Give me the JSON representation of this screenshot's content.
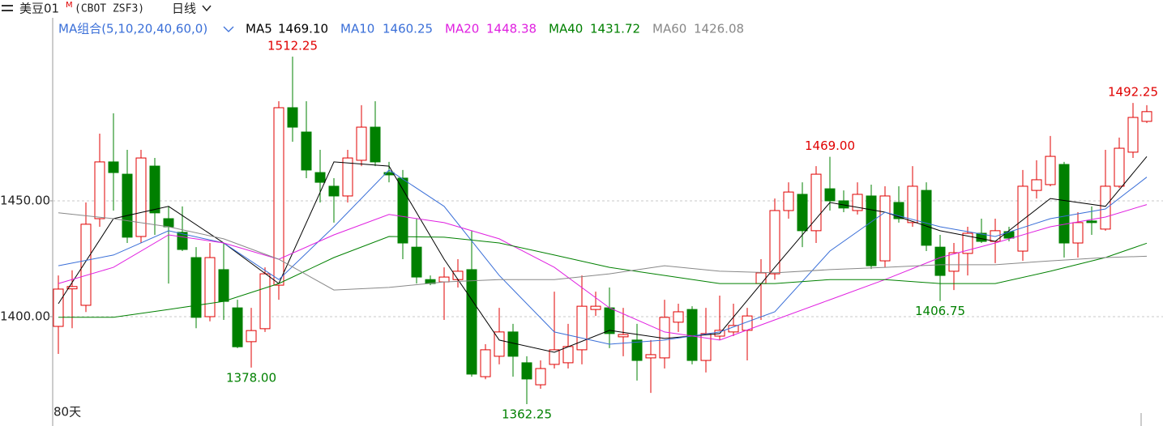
{
  "chart_data": {
    "type": "candlestick",
    "title": "美豆01",
    "title_mark": "M",
    "symbol": "(CBOT ZSF3)",
    "period": "日线",
    "ma_group_label": "MA组合(5,10,20,40,60,0)",
    "period_count": "80天",
    "up_color": "#e00000",
    "down_color": "#008000",
    "ylim": [
      1352.8,
      1529.0
    ],
    "yticks": [
      {
        "value": 1400,
        "label": "1400.00"
      },
      {
        "value": 1450,
        "label": "1450.00"
      }
    ],
    "grid": true,
    "open": [
      1395.8,
      1412,
      1404.9,
      1442.3,
      1466.8,
      1461.5,
      1434.6,
      1465,
      1442.3,
      1436.4,
      1425.5,
      1400,
      1420.3,
      1403.8,
      1389.2,
      1394.8,
      1413.6,
      1490.2,
      1479.7,
      1462.2,
      1456.3,
      1452.1,
      1467.5,
      1481.8,
      1462.2,
      1459.8,
      1430,
      1416,
      1415,
      1416,
      1420.3,
      1374.1,
      1382.9,
      1393.4,
      1380.1,
      1370.6,
      1379.4,
      1380.1,
      1385.7,
      1403.1,
      1403.8,
      1391.3,
      1389.9,
      1382.2,
      1382.2,
      1397.6,
      1403.1,
      1381.1,
      1391.6,
      1393.4,
      1394.1,
      1414.3,
      1418.5,
      1445.8,
      1452.8,
      1437.1,
      1455.2,
      1450,
      1445.8,
      1452.1,
      1424.1,
      1449.3,
      1440.6,
      1454.5,
      1430,
      1419.6,
      1427.3,
      1436,
      1432.5,
      1436.7,
      1428.3,
      1454.5,
      1457,
      1465.7,
      1431.8,
      1441.3,
      1437.8,
      1456.3,
      1471,
      1484.3
    ],
    "high": [
      1417.8,
      1420,
      1449.3,
      1479,
      1487.8,
      1472,
      1472,
      1468.5,
      1447.6,
      1447.6,
      1430,
      1431.8,
      1431.8,
      1407.3,
      1403.8,
      1421.3,
      1493,
      1512.25,
      1493,
      1472,
      1459.8,
      1472,
      1491.3,
      1493,
      1466.8,
      1463.3,
      1442.3,
      1417.8,
      1421.3,
      1424.8,
      1437,
      1388.1,
      1403.8,
      1396.9,
      1382.9,
      1381.1,
      1410.8,
      1396.9,
      1417.8,
      1410.8,
      1412.6,
      1403.8,
      1396.9,
      1389.9,
      1407.3,
      1405.6,
      1404.5,
      1403.8,
      1409.1,
      1405.6,
      1403.8,
      1424.8,
      1451,
      1458,
      1458,
      1465,
      1469,
      1454.5,
      1458,
      1457,
      1456.3,
      1456.3,
      1465,
      1458,
      1435.3,
      1431.8,
      1438.8,
      1442.3,
      1442.3,
      1438.8,
      1463.3,
      1467.5,
      1478,
      1466.8,
      1445.1,
      1447.6,
      1472,
      1477.3,
      1492.25,
      1491.3
    ],
    "low": [
      1383.9,
      1395,
      1402,
      1438.8,
      1445.8,
      1431.8,
      1431.8,
      1435.3,
      1414.3,
      1428.3,
      1395,
      1398,
      1398.6,
      1386.4,
      1378,
      1393.4,
      1407.3,
      1475.5,
      1459.8,
      1449.3,
      1440.6,
      1449.3,
      1465,
      1465,
      1458,
      1424.8,
      1414.3,
      1413.6,
      1398.6,
      1412.6,
      1374.1,
      1373,
      1379.4,
      1374.1,
      1362.25,
      1368.9,
      1377.6,
      1377.6,
      1379.4,
      1400.3,
      1386.4,
      1382.9,
      1372.4,
      1367.1,
      1377.6,
      1393.4,
      1379.4,
      1375.9,
      1389.9,
      1391.6,
      1381.1,
      1398.6,
      1416,
      1442.3,
      1430,
      1431.8,
      1445.8,
      1445.1,
      1444.1,
      1420.6,
      1421.3,
      1440.6,
      1438.8,
      1428.3,
      1406.75,
      1411.5,
      1417.8,
      1431.8,
      1423.1,
      1432.5,
      1424.1,
      1451,
      1456.3,
      1425.5,
      1425.5,
      1435.3,
      1437.1,
      1455.6,
      1468.5,
      1483.6
    ],
    "close": [
      1411.9,
      1413,
      1439.9,
      1466.8,
      1462.2,
      1434.3,
      1468.5,
      1444.8,
      1438.8,
      1429,
      1399.7,
      1425.5,
      1406.6,
      1387,
      1394,
      1418.5,
      1490.2,
      1481.8,
      1463.3,
      1458,
      1452.1,
      1468.5,
      1481.8,
      1466.8,
      1461.2,
      1431.8,
      1417.1,
      1414.3,
      1417.1,
      1419.6,
      1375.2,
      1385.7,
      1393.4,
      1382.9,
      1373.1,
      1377.6,
      1385.7,
      1387.1,
      1404.5,
      1404.5,
      1392.7,
      1392.3,
      1381.1,
      1383.6,
      1399.7,
      1402.1,
      1381.1,
      1392.7,
      1394.1,
      1396.2,
      1400.3,
      1418.9,
      1445.8,
      1453.8,
      1437.1,
      1461.5,
      1450,
      1446.9,
      1452.8,
      1422,
      1452.1,
      1442.3,
      1456.3,
      1430.8,
      1417.8,
      1427.6,
      1436,
      1432.5,
      1437.1,
      1433.9,
      1456.3,
      1459.1,
      1469.2,
      1431.8,
      1440.6,
      1440.6,
      1456.3,
      1472.7,
      1486,
      1488.5
    ],
    "series": [
      {
        "name": "MA5",
        "latest_label": "1469.10",
        "color": "#000000",
        "x": [
          0,
          4,
          8,
          12,
          16,
          20,
          24,
          28,
          32,
          36,
          40,
          44,
          48,
          52,
          56,
          60,
          64,
          68,
          72,
          76,
          79
        ],
        "values": [
          1405.6,
          1442.3,
          1447.6,
          1431.8,
          1414.3,
          1466.8,
          1465,
          1424.8,
          1389.9,
          1384.6,
          1394.1,
          1390.6,
          1392.7,
          1421.3,
          1449.3,
          1445.1,
          1437.1,
          1432.5,
          1451,
          1447.6,
          1469.1
        ]
      },
      {
        "name": "MA10",
        "latest_label": "1460.25",
        "color": "#3a6fd8",
        "x": [
          0,
          4,
          8,
          12,
          16,
          20,
          24,
          28,
          32,
          36,
          40,
          44,
          48,
          52,
          56,
          60,
          64,
          68,
          72,
          76,
          79
        ],
        "values": [
          1422,
          1426.6,
          1437.1,
          1431.8,
          1416,
          1438.8,
          1463.3,
          1447.6,
          1417.8,
          1393.4,
          1388.1,
          1389.9,
          1393.4,
          1402.1,
          1428.3,
          1445.1,
          1438.8,
          1434.6,
          1442.3,
          1446.5,
          1460.25
        ]
      },
      {
        "name": "MA20",
        "latest_label": "1448.38",
        "color": "#e020e0",
        "x": [
          0,
          4,
          8,
          12,
          16,
          20,
          24,
          28,
          32,
          36,
          40,
          44,
          48,
          52,
          56,
          60,
          64,
          68,
          72,
          76,
          79
        ],
        "values": [
          1414.3,
          1421.3,
          1435.3,
          1431.8,
          1424.8,
          1435.3,
          1444.1,
          1440.6,
          1433.6,
          1421.3,
          1403.8,
          1393.4,
          1389.9,
          1398.6,
          1407.3,
          1416,
          1425.5,
          1431.8,
          1438.8,
          1443,
          1448.38
        ]
      },
      {
        "name": "MA40",
        "latest_label": "1431.72",
        "color": "#008000",
        "x": [
          0,
          4,
          8,
          12,
          16,
          20,
          24,
          28,
          32,
          36,
          40,
          44,
          48,
          52,
          56,
          60,
          64,
          68,
          72,
          76,
          79
        ],
        "values": [
          1399.7,
          1399.7,
          1403.1,
          1406.6,
          1414.3,
          1425.5,
          1434.6,
          1434.3,
          1431.8,
          1426.6,
          1421.3,
          1417.8,
          1414.3,
          1414.3,
          1416,
          1416,
          1414.3,
          1414.3,
          1419.6,
          1425.5,
          1431.72
        ]
      },
      {
        "name": "MA60",
        "latest_label": "1426.08",
        "color": "#888888",
        "x": [
          0,
          4,
          8,
          12,
          16,
          20,
          24,
          28,
          32,
          36,
          40,
          44,
          48,
          52,
          56,
          60,
          64,
          68,
          72,
          76,
          79
        ],
        "values": [
          1444.8,
          1442.3,
          1438.8,
          1433.6,
          1424.8,
          1411.5,
          1412.6,
          1415,
          1416,
          1416,
          1418.5,
          1422,
          1419.6,
          1418.9,
          1420.3,
          1421.3,
          1422.4,
          1422.4,
          1424.1,
          1425.5,
          1426.08
        ]
      }
    ],
    "annotations": [
      {
        "text": "1512.25",
        "value": 1512.25,
        "x": 17,
        "color": "#e00000",
        "side": "above"
      },
      {
        "text": "1378.00",
        "value": 1378,
        "x": 14,
        "color": "#008000",
        "side": "below"
      },
      {
        "text": "1362.25",
        "value": 1362.25,
        "x": 34,
        "color": "#008000",
        "side": "below"
      },
      {
        "text": "1469.00",
        "value": 1469,
        "x": 56,
        "color": "#e00000",
        "side": "above"
      },
      {
        "text": "1406.75",
        "value": 1406.75,
        "x": 64,
        "color": "#008000",
        "side": "below"
      },
      {
        "text": "1492.25",
        "value": 1492.25,
        "x": 78,
        "color": "#e00000",
        "side": "above"
      }
    ]
  }
}
